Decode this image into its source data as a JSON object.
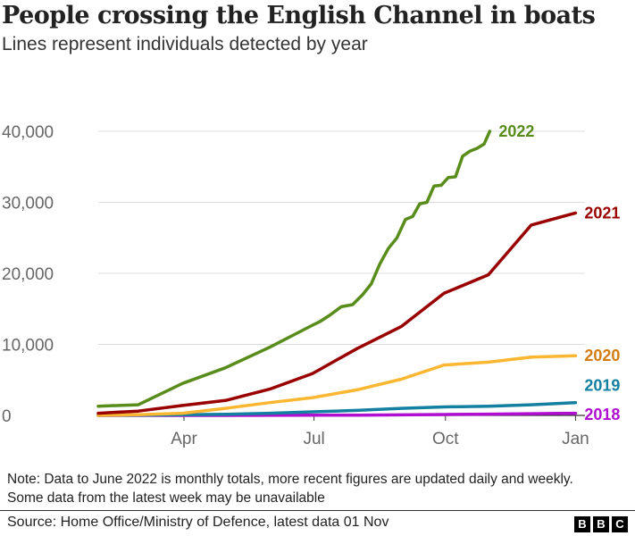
{
  "chart_data": {
    "type": "line",
    "title": "People crossing the English Channel in boats",
    "subtitle": "Lines represent individuals detected by year",
    "ylim": [
      0,
      40000
    ],
    "yticks": [
      0,
      10000,
      20000,
      30000,
      40000
    ],
    "ytick_labels": [
      "0",
      "10,000",
      "20,000",
      "30,000",
      "40,000"
    ],
    "xticks": [
      "04-01",
      "07-01",
      "10-01",
      "12-31"
    ],
    "xtick_labels": [
      "Apr",
      "Jul",
      "Oct",
      "Jan"
    ],
    "grid": "horizontal",
    "legend": "direct labels at line ends",
    "series": [
      {
        "name": "2018",
        "color": "#b00ed0",
        "x": [
          "01-31",
          "02-28",
          "03-31",
          "04-30",
          "05-31",
          "06-30",
          "07-31",
          "08-31",
          "09-30",
          "10-31",
          "11-30",
          "12-31"
        ],
        "values": [
          0,
          0,
          0,
          0,
          10,
          20,
          40,
          80,
          120,
          180,
          240,
          300
        ]
      },
      {
        "name": "2019",
        "color": "#1380a1",
        "x": [
          "01-31",
          "02-28",
          "03-31",
          "04-30",
          "05-31",
          "06-30",
          "07-31",
          "08-31",
          "09-30",
          "10-31",
          "11-30",
          "12-31"
        ],
        "values": [
          0,
          20,
          100,
          150,
          300,
          500,
          700,
          1000,
          1200,
          1300,
          1500,
          1800
        ]
      },
      {
        "name": "2020",
        "color": "#fbb731",
        "label_color": "#d47b12",
        "x": [
          "01-31",
          "02-28",
          "03-31",
          "04-30",
          "05-31",
          "06-30",
          "07-31",
          "08-31",
          "09-30",
          "10-31",
          "11-30",
          "12-31"
        ],
        "values": [
          0,
          100,
          300,
          1000,
          1800,
          2500,
          3600,
          5100,
          7100,
          7500,
          8200,
          8400
        ]
      },
      {
        "name": "2021",
        "color": "#990000",
        "x": [
          "01-31",
          "02-28",
          "03-31",
          "04-30",
          "05-31",
          "06-30",
          "07-31",
          "08-31",
          "09-30",
          "10-31",
          "11-30",
          "12-31"
        ],
        "values": [
          300,
          600,
          1400,
          2100,
          3700,
          5900,
          9400,
          12500,
          17200,
          19800,
          26800,
          28500
        ]
      },
      {
        "name": "2022",
        "color": "#588c1b",
        "x": [
          "01-31",
          "02-28",
          "03-31",
          "04-30",
          "05-31",
          "06-30",
          "07-05",
          "07-12",
          "07-20",
          "07-28",
          "08-04",
          "08-10",
          "08-16",
          "08-22",
          "08-28",
          "09-03",
          "09-08",
          "09-13",
          "09-18",
          "09-23",
          "09-28",
          "10-03",
          "10-08",
          "10-13",
          "10-18",
          "10-23",
          "10-28",
          "11-01"
        ],
        "values": [
          1300,
          1500,
          4500,
          6700,
          9600,
          12700,
          13200,
          14100,
          15300,
          15600,
          17000,
          18500,
          21300,
          23500,
          25000,
          27600,
          28000,
          29800,
          30000,
          32300,
          32400,
          33500,
          33600,
          36500,
          37200,
          37600,
          38200,
          40000
        ]
      }
    ]
  },
  "note": "Note: Data to June 2022 is monthly totals, more recent figures are updated daily and weekly. Some data from the latest week may be unavailable",
  "source": "Source: Home Office/Ministry of Defence, latest data 01 Nov",
  "logo": [
    "B",
    "B",
    "C"
  ]
}
